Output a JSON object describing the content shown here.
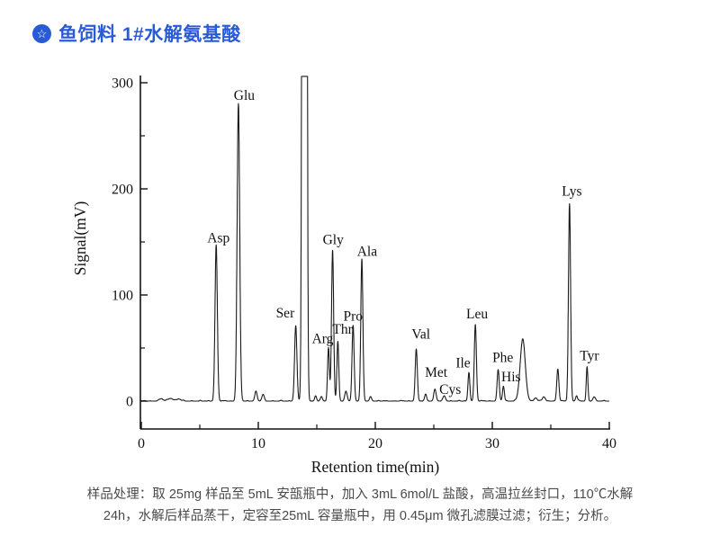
{
  "header": {
    "icon": "star-badge-icon",
    "icon_glyph": "☆",
    "title": "鱼饲料 1#水解氨基酸",
    "accent_color": "#2a5bd7"
  },
  "caption": {
    "line1": "样品处理：取 25mg 样品至 5mL 安瓿瓶中，加入 3mL 6mol/L 盐酸，高温拉丝封口，110℃水解",
    "line2": "24h，水解后样品蒸干，定容至25mL 容量瓶中，用 0.45μm 微孔滤膜过滤；衍生；分析。"
  },
  "chart_data": {
    "type": "line",
    "title": "",
    "xlabel": "Retention time(min)",
    "ylabel": "Signal(mV)",
    "xlim": [
      0,
      40
    ],
    "ylim": [
      0,
      300
    ],
    "x_ticks": [
      0,
      10,
      20,
      30,
      40
    ],
    "x_minor_ticks": [
      5,
      15,
      25,
      35
    ],
    "y_ticks": [
      0,
      100,
      200,
      300
    ],
    "y_minor_ticks": [
      50,
      150,
      250
    ],
    "grid": false,
    "legend": "none",
    "line_color": "#1a1a1a",
    "text_color": "#111111",
    "clip_mv": 306,
    "peaks": [
      {
        "t": 1.7,
        "mv": 2,
        "sigma": 0.18,
        "label": ""
      },
      {
        "t": 2.5,
        "mv": 2.5,
        "sigma": 0.22,
        "label": ""
      },
      {
        "t": 3.2,
        "mv": 2,
        "sigma": 0.18,
        "label": ""
      },
      {
        "t": 6.4,
        "mv": 147,
        "sigma": 0.1,
        "label": "Asp"
      },
      {
        "t": 8.3,
        "mv": 280,
        "sigma": 0.11,
        "label": "Glu"
      },
      {
        "t": 9.8,
        "mv": 9,
        "sigma": 0.1,
        "label": ""
      },
      {
        "t": 10.4,
        "mv": 6,
        "sigma": 0.1,
        "label": ""
      },
      {
        "t": 13.2,
        "mv": 71,
        "sigma": 0.1,
        "label": "Ser"
      },
      {
        "t": 13.95,
        "mv": 306,
        "sigma": 0.11,
        "label": "",
        "clipped": true
      },
      {
        "t": 14.9,
        "mv": 5,
        "sigma": 0.08,
        "label": ""
      },
      {
        "t": 15.4,
        "mv": 4,
        "sigma": 0.08,
        "label": ""
      },
      {
        "t": 16.0,
        "mv": 50,
        "sigma": 0.08,
        "label": "Arg"
      },
      {
        "t": 16.35,
        "mv": 142,
        "sigma": 0.09,
        "label": "Gly"
      },
      {
        "t": 16.8,
        "mv": 56,
        "sigma": 0.08,
        "label": "Thr"
      },
      {
        "t": 17.5,
        "mv": 9,
        "sigma": 0.1,
        "label": ""
      },
      {
        "t": 18.1,
        "mv": 71,
        "sigma": 0.09,
        "label": "Pro"
      },
      {
        "t": 18.85,
        "mv": 133,
        "sigma": 0.09,
        "label": "Ala"
      },
      {
        "t": 19.6,
        "mv": 4,
        "sigma": 0.09,
        "label": ""
      },
      {
        "t": 23.5,
        "mv": 49,
        "sigma": 0.09,
        "label": "Val"
      },
      {
        "t": 24.3,
        "mv": 6,
        "sigma": 0.09,
        "label": ""
      },
      {
        "t": 25.1,
        "mv": 11,
        "sigma": 0.1,
        "label": "Met"
      },
      {
        "t": 25.9,
        "mv": 5,
        "sigma": 0.1,
        "label": "Cys"
      },
      {
        "t": 28.0,
        "mv": 27,
        "sigma": 0.08,
        "label": "Ile"
      },
      {
        "t": 28.55,
        "mv": 72,
        "sigma": 0.09,
        "label": "Leu"
      },
      {
        "t": 30.5,
        "mv": 29,
        "sigma": 0.09,
        "label": "Phe"
      },
      {
        "t": 30.95,
        "mv": 14,
        "sigma": 0.08,
        "label": "His"
      },
      {
        "t": 32.6,
        "mv": 58,
        "sigma": 0.22,
        "label": ""
      },
      {
        "t": 33.7,
        "mv": 3,
        "sigma": 0.12,
        "label": ""
      },
      {
        "t": 34.4,
        "mv": 4,
        "sigma": 0.12,
        "label": ""
      },
      {
        "t": 35.6,
        "mv": 30,
        "sigma": 0.09,
        "label": ""
      },
      {
        "t": 36.6,
        "mv": 186,
        "sigma": 0.09,
        "label": "Lys"
      },
      {
        "t": 37.2,
        "mv": 5,
        "sigma": 0.08,
        "label": ""
      },
      {
        "t": 38.1,
        "mv": 32,
        "sigma": 0.07,
        "label": "Tyr"
      },
      {
        "t": 38.7,
        "mv": 4,
        "sigma": 0.1,
        "label": ""
      }
    ],
    "peak_labels": [
      {
        "text": "Asp",
        "t": 6.6,
        "mv": 154
      },
      {
        "text": "Glu",
        "t": 8.8,
        "mv": 288
      },
      {
        "text": "Ser",
        "t": 12.3,
        "mv": 83
      },
      {
        "text": "Arg",
        "t": 15.5,
        "mv": 59
      },
      {
        "text": "Gly",
        "t": 16.4,
        "mv": 152
      },
      {
        "text": "Thr",
        "t": 17.2,
        "mv": 68
      },
      {
        "text": "Pro",
        "t": 18.1,
        "mv": 80
      },
      {
        "text": "Ala",
        "t": 19.3,
        "mv": 141
      },
      {
        "text": "Val",
        "t": 23.9,
        "mv": 63
      },
      {
        "text": "Met",
        "t": 25.2,
        "mv": 27
      },
      {
        "text": "Cys",
        "t": 26.4,
        "mv": 11
      },
      {
        "text": "Ile",
        "t": 27.5,
        "mv": 36
      },
      {
        "text": "Leu",
        "t": 28.7,
        "mv": 82
      },
      {
        "text": "Phe",
        "t": 30.9,
        "mv": 41
      },
      {
        "text": "His",
        "t": 31.6,
        "mv": 23
      },
      {
        "text": "Lys",
        "t": 36.8,
        "mv": 198
      },
      {
        "text": "Tyr",
        "t": 38.3,
        "mv": 43
      }
    ]
  }
}
